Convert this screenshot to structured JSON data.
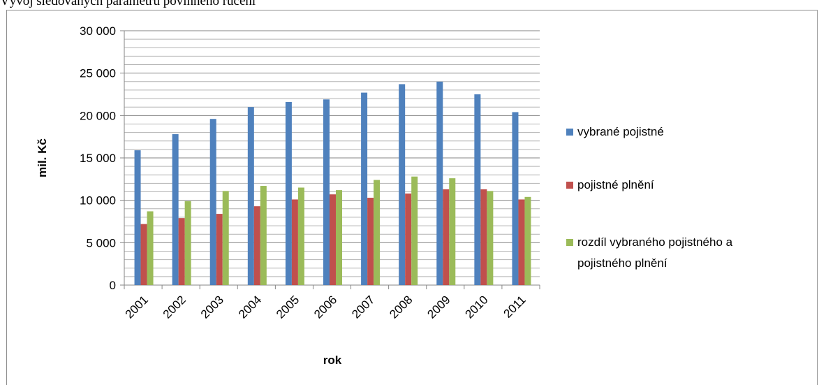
{
  "caption": "Vývoj sledovaných parametrů povinného ručení",
  "chart_data": {
    "type": "bar",
    "xlabel": "rok",
    "ylabel": "mil. Kč",
    "ylim": [
      0,
      30000
    ],
    "ytick_step": 5000,
    "ytick_labels": [
      "0",
      "5 000",
      "10 000",
      "15 000",
      "20 000",
      "25 000",
      "30 000"
    ],
    "minor_grid_step": 1000,
    "grid": true,
    "legend_position": "right",
    "categories": [
      "2001",
      "2002",
      "2003",
      "2004",
      "2005",
      "2006",
      "2007",
      "2008",
      "2009",
      "2010",
      "2011"
    ],
    "series": [
      {
        "name": "vybrané pojistné",
        "color": "#4f81bd",
        "values": [
          15900,
          17800,
          19600,
          21000,
          21600,
          21900,
          22700,
          23700,
          24000,
          22500,
          20400
        ]
      },
      {
        "name": "pojistné plnění",
        "color": "#c0504d",
        "values": [
          7200,
          7900,
          8400,
          9300,
          10100,
          10700,
          10300,
          10800,
          11300,
          11300,
          10100
        ]
      },
      {
        "name": "rozdíl vybraného pojistného a pojistného plnění",
        "color": "#9bbb59",
        "legend_lines": [
          "rozdíl vybraného pojistného a",
          "pojistného plnění"
        ],
        "values": [
          8700,
          9900,
          11100,
          11700,
          11500,
          11200,
          12400,
          12800,
          12600,
          11100,
          10400
        ]
      }
    ]
  }
}
